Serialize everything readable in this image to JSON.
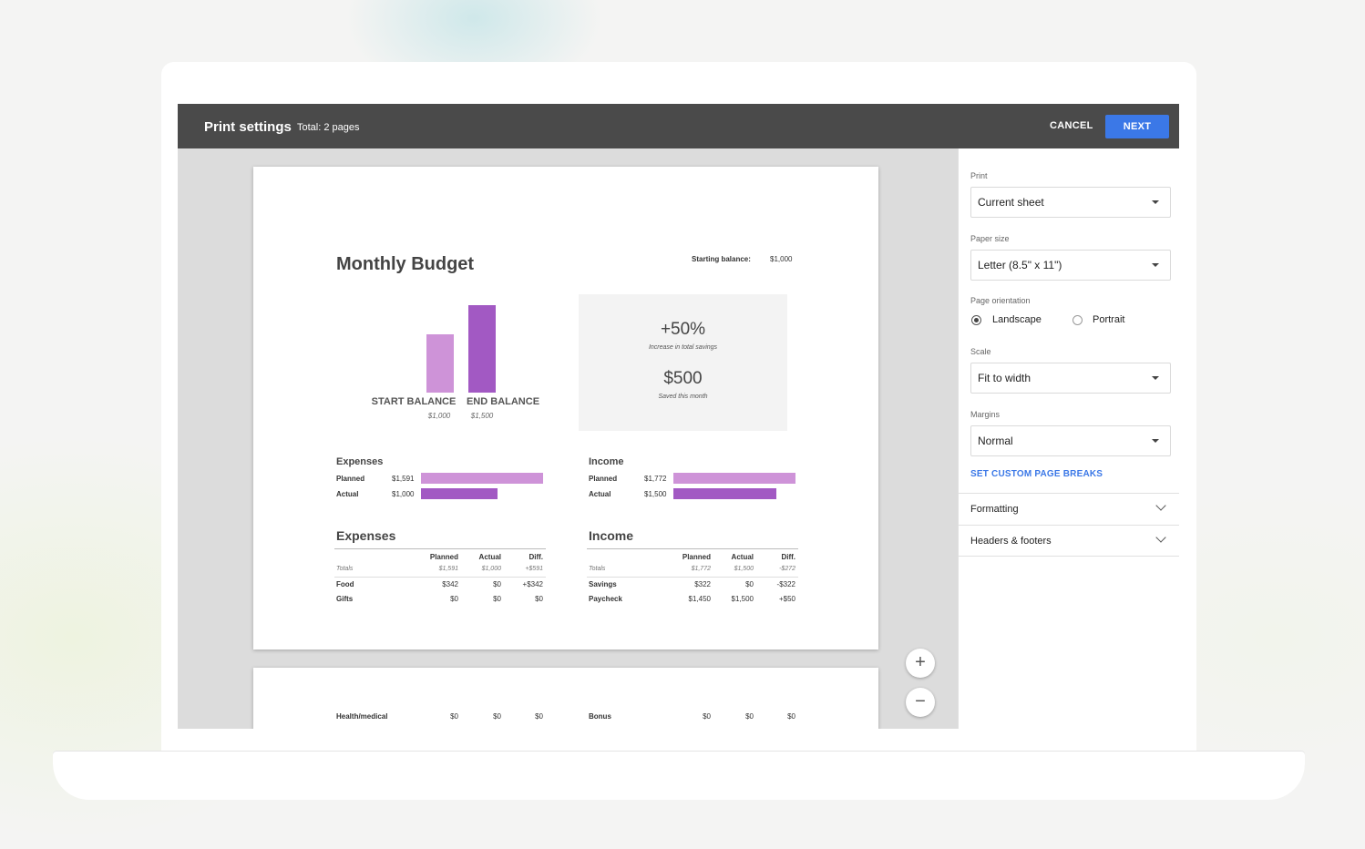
{
  "header": {
    "title": "Print settings",
    "total": "Total: 2 pages",
    "cancel_label": "CANCEL",
    "next_label": "NEXT"
  },
  "zoom": {
    "in_symbol": "+",
    "out_symbol": "−"
  },
  "page1": {
    "title": "Monthly Budget",
    "starting_balance_label": "Starting balance:",
    "starting_balance_value": "$1,000",
    "bar_chart": {
      "bars": [
        {
          "label": "START BALANCE",
          "sub": "$1,000",
          "value": 1000,
          "color": "#ce93d8"
        },
        {
          "label": "END BALANCE",
          "sub": "$1,500",
          "value": 1500,
          "color": "#a259c3"
        }
      ]
    },
    "stats": {
      "big1": "+50%",
      "small1": "Increase in total savings",
      "big2": "$500",
      "small2": "Saved this month"
    },
    "summary_expenses": {
      "heading": "Expenses",
      "rows": [
        {
          "label": "Planned",
          "amount": "$1,591",
          "value": 1591,
          "color": "#ce93d8"
        },
        {
          "label": "Actual",
          "amount": "$1,000",
          "value": 1000,
          "color": "#a259c3"
        }
      ]
    },
    "summary_income": {
      "heading": "Income",
      "rows": [
        {
          "label": "Planned",
          "amount": "$1,772",
          "value": 1772,
          "color": "#ce93d8"
        },
        {
          "label": "Actual",
          "amount": "$1,500",
          "value": 1500,
          "color": "#a259c3"
        }
      ]
    },
    "table_expenses": {
      "heading": "Expenses",
      "columns": [
        "Planned",
        "Actual",
        "Diff."
      ],
      "totals": {
        "name": "Totals",
        "cells": [
          "$1,591",
          "$1,000",
          "+$591"
        ]
      },
      "rows": [
        {
          "name": "Food",
          "cells": [
            "$342",
            "$0",
            "+$342"
          ]
        },
        {
          "name": "Gifts",
          "cells": [
            "$0",
            "$0",
            "$0"
          ]
        }
      ]
    },
    "table_income": {
      "heading": "Income",
      "columns": [
        "Planned",
        "Actual",
        "Diff."
      ],
      "totals": {
        "name": "Totals",
        "cells": [
          "$1,772",
          "$1,500",
          "-$272"
        ]
      },
      "rows": [
        {
          "name": "Savings",
          "cells": [
            "$322",
            "$0",
            "-$322"
          ]
        },
        {
          "name": "Paycheck",
          "cells": [
            "$1,450",
            "$1,500",
            "+$50"
          ]
        }
      ]
    }
  },
  "page2": {
    "expense_row": {
      "name": "Health/medical",
      "cells": [
        "$0",
        "$0",
        "$0"
      ]
    },
    "income_row": {
      "name": "Bonus",
      "cells": [
        "$0",
        "$0",
        "$0"
      ]
    }
  },
  "sidebar": {
    "print_label": "Print",
    "print_value": "Current sheet",
    "paper_label": "Paper size",
    "paper_value": "Letter (8.5\" x 11\")",
    "orientation_label": "Page orientation",
    "landscape_label": "Landscape",
    "portrait_label": "Portrait",
    "orientation_selected": "Landscape",
    "scale_label": "Scale",
    "scale_value": "Fit to width",
    "margins_label": "Margins",
    "margins_value": "Normal",
    "page_breaks_link": "SET CUSTOM PAGE BREAKS",
    "formatting_label": "Formatting",
    "headers_label": "Headers & footers"
  }
}
